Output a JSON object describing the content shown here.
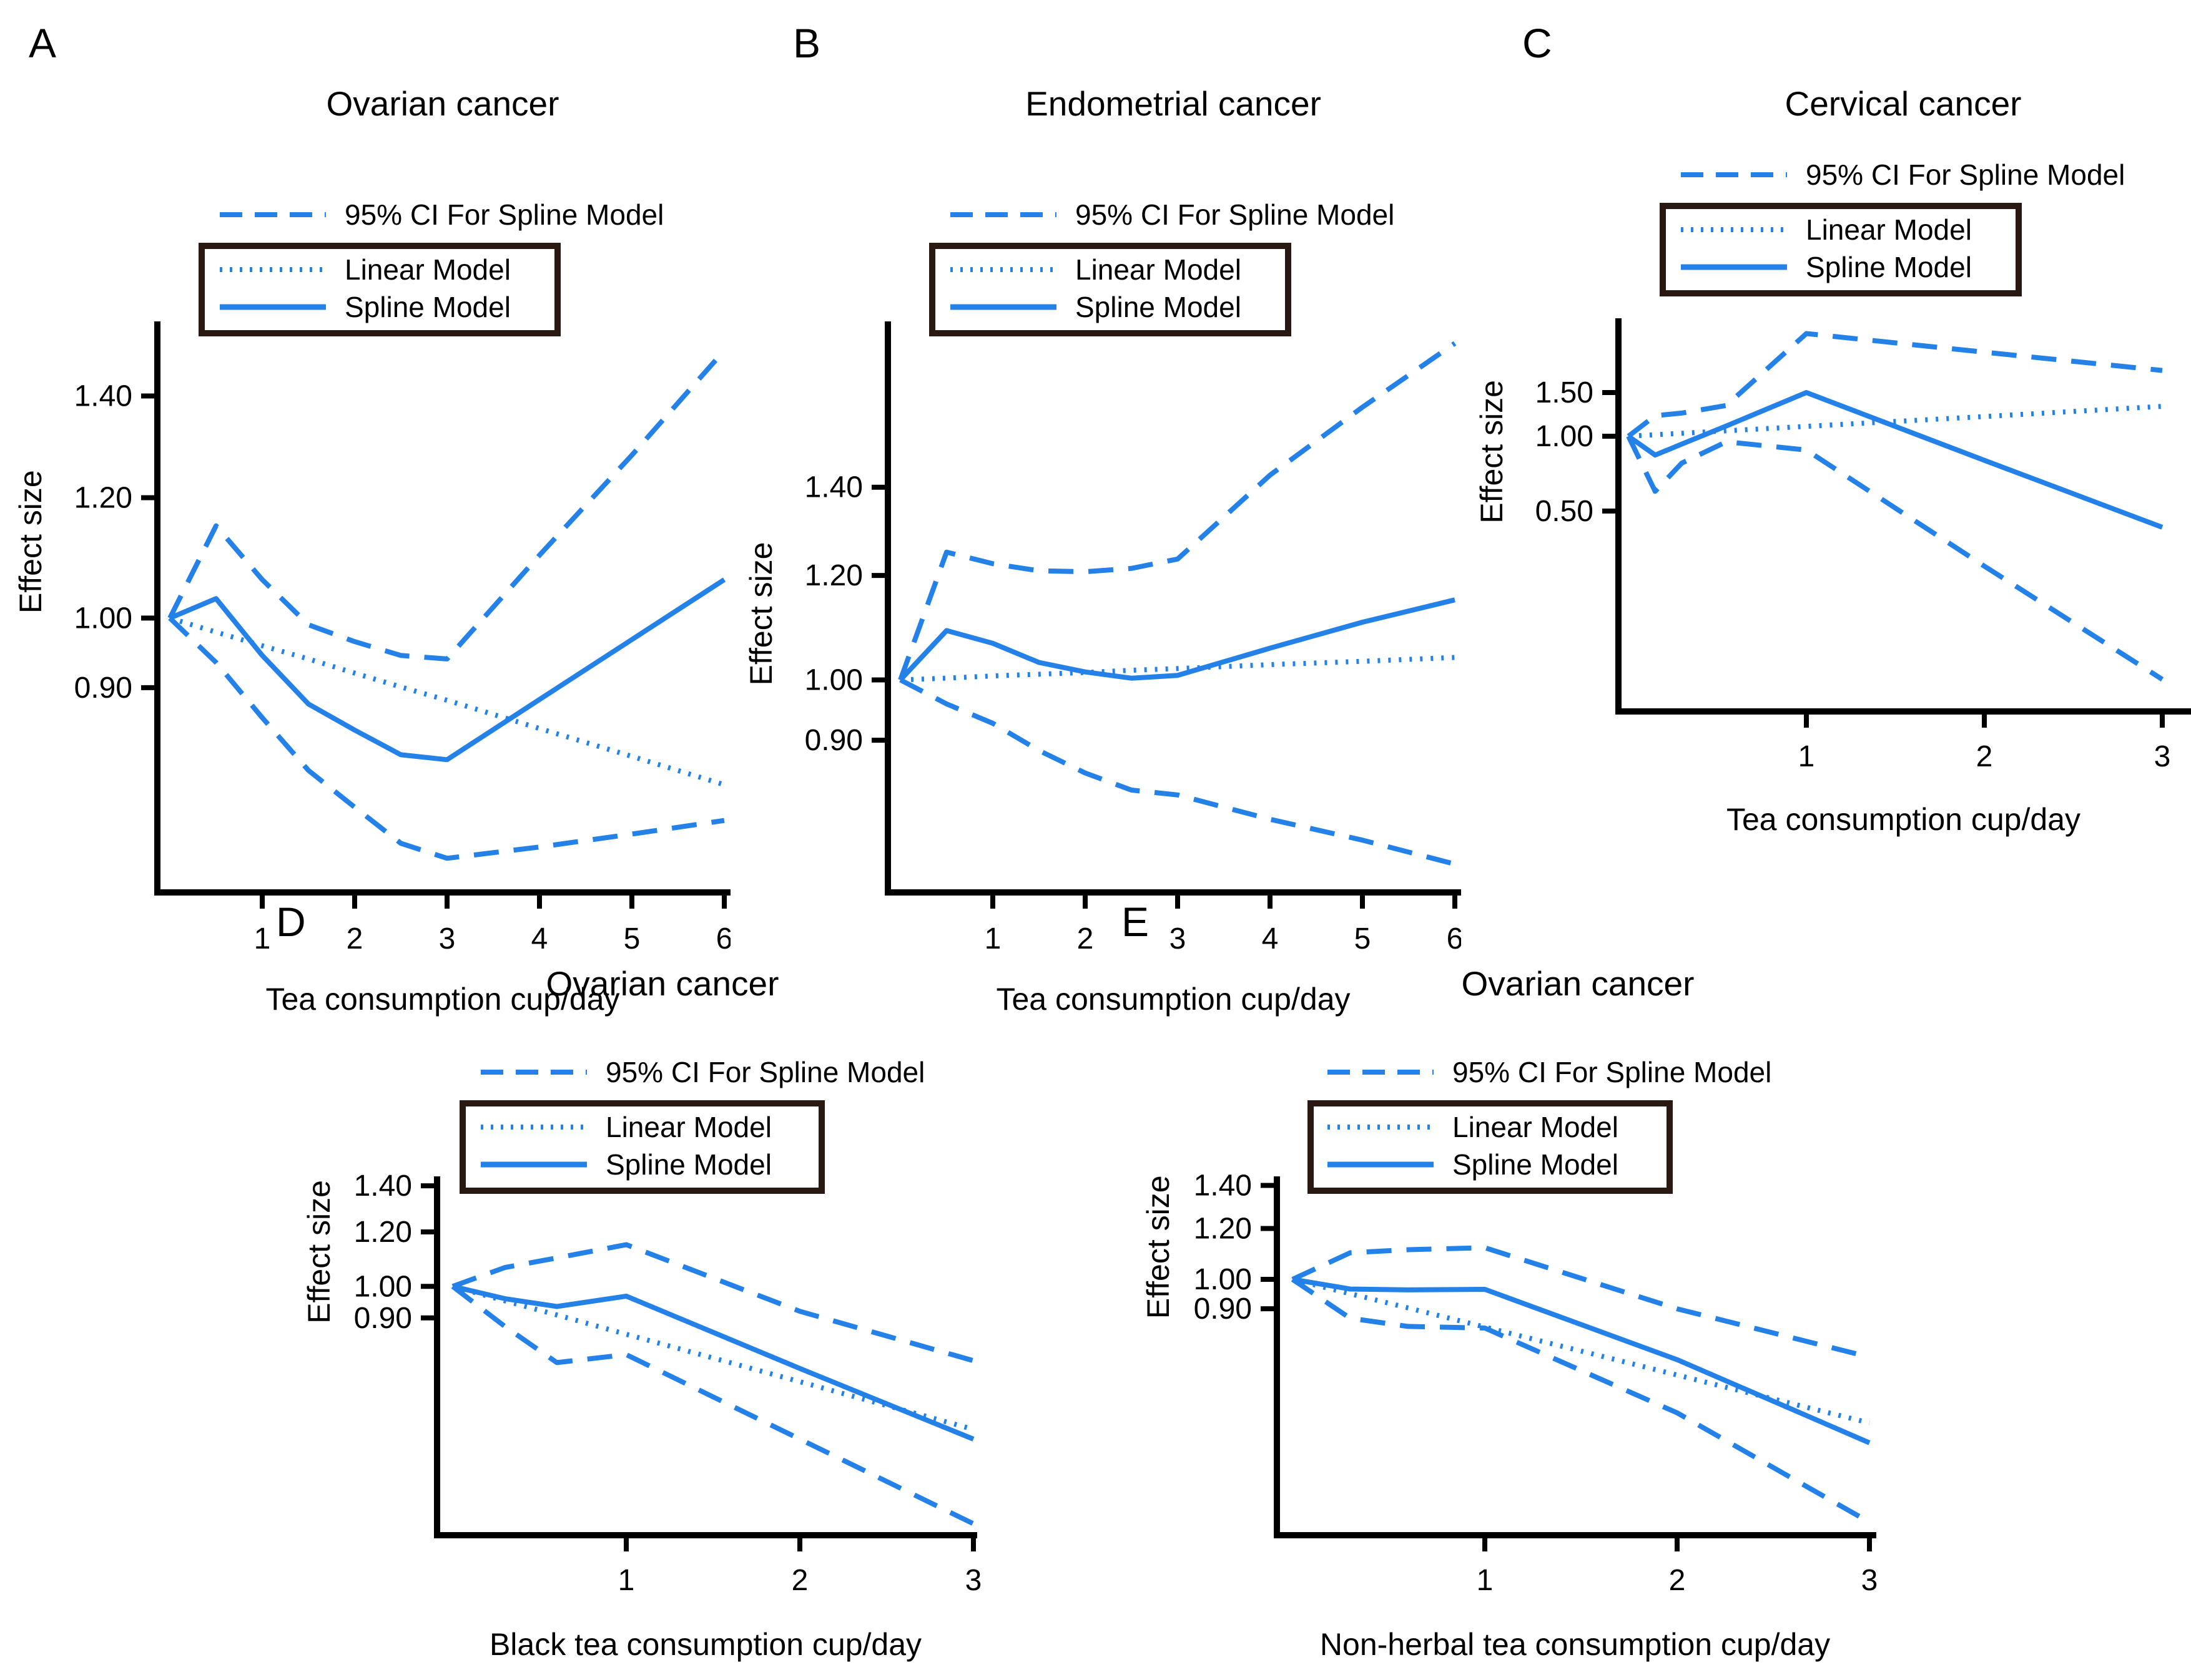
{
  "figure": {
    "ylabel": "Effect size",
    "colors": {
      "accent": "#2381E8",
      "legend_box_border": "#2A1913",
      "text": "#000000",
      "axis": "#000000"
    },
    "legend": {
      "ci_label": "95% CI For Spline Model",
      "linear_label": "Linear Model",
      "spline_label": "Spline Model"
    }
  },
  "chart_data": [
    {
      "type": "line",
      "panel_label": "A",
      "title": "Ovarian cancer",
      "xlabel": "Tea consumption cup/day",
      "ylabel": "Effect size",
      "yscale": "log",
      "grid": false,
      "legend_position": "top-inside-box",
      "x_ticks": [
        1,
        2,
        3,
        4,
        5,
        6
      ],
      "y_ticks": [
        0.9,
        1.0,
        1.2,
        1.4
      ],
      "y_tick_labels": [
        "0.90",
        "1.00",
        "1.20",
        "1.40"
      ],
      "xlim": [
        0,
        6
      ],
      "ylim": [
        0.66,
        1.56
      ],
      "legend": {
        "ci": "95% CI For Spline Model",
        "linear": "Linear Model",
        "spline": "Spline Model"
      },
      "series": [
        {
          "name": "95% CI upper",
          "style": "dashed",
          "x": [
            0,
            0.5,
            1,
            1.5,
            2,
            2.5,
            3,
            4,
            5,
            6
          ],
          "y": [
            1.0,
            1.15,
            1.06,
            0.99,
            0.965,
            0.945,
            0.94,
            1.1,
            1.28,
            1.5
          ]
        },
        {
          "name": "Spline Model",
          "style": "solid",
          "x": [
            0,
            0.5,
            1,
            1.5,
            2,
            2.5,
            3,
            4,
            5,
            6
          ],
          "y": [
            1.0,
            1.03,
            0.945,
            0.878,
            0.844,
            0.813,
            0.807,
            0.884,
            0.968,
            1.06
          ]
        },
        {
          "name": "Linear Model",
          "style": "dotted",
          "x": [
            0,
            0.5,
            1,
            1.5,
            2,
            2.5,
            3,
            4,
            5,
            6
          ],
          "y": [
            1.0,
            0.979,
            0.959,
            0.94,
            0.92,
            0.901,
            0.883,
            0.846,
            0.811,
            0.777
          ]
        },
        {
          "name": "95% CI lower",
          "style": "dashed",
          "x": [
            0,
            0.5,
            1,
            1.5,
            2,
            2.5,
            3,
            4,
            5,
            6
          ],
          "y": [
            1.0,
            0.935,
            0.86,
            0.794,
            0.751,
            0.711,
            0.695,
            0.707,
            0.721,
            0.736
          ]
        }
      ]
    },
    {
      "type": "line",
      "panel_label": "B",
      "title": "Endometrial cancer",
      "xlabel": "Tea consumption cup/day",
      "ylabel": "Effect size",
      "yscale": "log",
      "grid": false,
      "legend_position": "top-inside-box",
      "x_ticks": [
        1,
        2,
        3,
        4,
        5,
        6
      ],
      "y_ticks": [
        0.9,
        1.0,
        1.2,
        1.4
      ],
      "y_tick_labels": [
        "0.90",
        "1.00",
        "1.20",
        "1.40"
      ],
      "xlim": [
        0,
        6
      ],
      "ylim": [
        0.69,
        1.86
      ],
      "legend": {
        "ci": "95% CI For Spline Model",
        "linear": "Linear Model",
        "spline": "Spline Model"
      },
      "series": [
        {
          "name": "95% CI upper",
          "style": "dashed",
          "x": [
            0,
            0.5,
            1,
            1.5,
            2,
            2.5,
            3,
            4,
            5,
            6
          ],
          "y": [
            1.0,
            1.25,
            1.225,
            1.21,
            1.208,
            1.215,
            1.235,
            1.43,
            1.61,
            1.8
          ]
        },
        {
          "name": "Spline Model",
          "style": "solid",
          "x": [
            0,
            0.5,
            1,
            1.5,
            2,
            2.5,
            3,
            4,
            5,
            6
          ],
          "y": [
            1.0,
            1.09,
            1.066,
            1.031,
            1.014,
            1.003,
            1.008,
            1.057,
            1.106,
            1.15
          ]
        },
        {
          "name": "Linear Model",
          "style": "dotted",
          "x": [
            0,
            0.5,
            1,
            1.5,
            2,
            2.5,
            3,
            4,
            5,
            6
          ],
          "y": [
            1.0,
            1.003,
            1.007,
            1.01,
            1.013,
            1.017,
            1.02,
            1.027,
            1.033,
            1.04
          ]
        },
        {
          "name": "95% CI lower",
          "style": "dashed",
          "x": [
            0,
            0.5,
            1,
            1.5,
            2,
            2.5,
            3,
            4,
            5,
            6
          ],
          "y": [
            1.0,
            0.959,
            0.927,
            0.884,
            0.85,
            0.825,
            0.818,
            0.784,
            0.756,
            0.725
          ]
        }
      ]
    },
    {
      "type": "line",
      "panel_label": "C",
      "title": "Cervical cancer",
      "xlabel": "Tea consumption cup/day",
      "ylabel": "Effect size",
      "yscale": "log",
      "grid": false,
      "legend_position": "top-inside-box",
      "x_ticks": [
        1,
        2,
        3
      ],
      "y_ticks": [
        0.5,
        1.0,
        1.5
      ],
      "y_tick_labels": [
        "0.50",
        "1.00",
        "1.50"
      ],
      "xlim": [
        0,
        3
      ],
      "ylim": [
        0.078,
        2.9
      ],
      "legend": {
        "ci": "95% CI For Spline Model",
        "linear": "Linear Model",
        "spline": "Spline Model"
      },
      "series": [
        {
          "name": "95% CI upper",
          "style": "dashed",
          "x": [
            0,
            0.15,
            0.3,
            0.55,
            1,
            2,
            3
          ],
          "y": [
            1.0,
            1.21,
            1.24,
            1.33,
            2.59,
            2.18,
            1.84
          ]
        },
        {
          "name": "Spline Model",
          "style": "solid",
          "x": [
            0,
            0.15,
            0.3,
            0.55,
            1,
            2,
            3
          ],
          "y": [
            1.0,
            0.84,
            0.93,
            1.1,
            1.5,
            0.8,
            0.43
          ]
        },
        {
          "name": "Linear Model",
          "style": "dotted",
          "x": [
            0,
            0.15,
            0.3,
            0.55,
            1,
            2,
            3
          ],
          "y": [
            1.0,
            1.014,
            1.028,
            1.052,
            1.096,
            1.2,
            1.32
          ]
        },
        {
          "name": "95% CI lower",
          "style": "dashed",
          "x": [
            0,
            0.15,
            0.3,
            0.55,
            1,
            2,
            3
          ],
          "y": [
            1.0,
            0.6,
            0.78,
            0.95,
            0.88,
            0.3,
            0.105
          ]
        }
      ]
    },
    {
      "type": "line",
      "panel_label": "D",
      "title": "Ovarian cancer",
      "xlabel": "Black tea consumption cup/day",
      "ylabel": "Effect size",
      "yscale": "log",
      "grid": false,
      "legend_position": "top-inside-box",
      "x_ticks": [
        1,
        2,
        3
      ],
      "y_ticks": [
        0.9,
        1.0,
        1.2,
        1.4
      ],
      "y_tick_labels": [
        "0.90",
        "1.00",
        "1.20",
        "1.40"
      ],
      "xlim": [
        0,
        3
      ],
      "ylim": [
        0.435,
        1.43
      ],
      "legend": {
        "ci": "95% CI For Spline Model",
        "linear": "Linear Model",
        "spline": "Spline Model"
      },
      "series": [
        {
          "name": "95% CI upper",
          "style": "dashed",
          "x": [
            0,
            0.3,
            0.6,
            1,
            2,
            3
          ],
          "y": [
            1.0,
            1.065,
            1.1,
            1.15,
            0.92,
            0.78
          ]
        },
        {
          "name": "Spline Model",
          "style": "solid",
          "x": [
            0,
            0.3,
            0.6,
            1,
            2,
            3
          ],
          "y": [
            1.0,
            0.96,
            0.935,
            0.968,
            0.76,
            0.6
          ]
        },
        {
          "name": "Linear Model",
          "style": "dotted",
          "x": [
            0,
            0.3,
            0.6,
            1,
            2,
            3
          ],
          "y": [
            1.0,
            0.953,
            0.909,
            0.852,
            0.727,
            0.62
          ]
        },
        {
          "name": "95% CI lower",
          "style": "dashed",
          "x": [
            0,
            0.3,
            0.6,
            1,
            2,
            3
          ],
          "y": [
            1.0,
            0.875,
            0.775,
            0.796,
            0.6,
            0.452
          ]
        }
      ]
    },
    {
      "type": "line",
      "panel_label": "E",
      "title": "Ovarian cancer",
      "xlabel": "Non-herbal tea consumption cup/day",
      "ylabel": "Effect size",
      "yscale": "log",
      "grid": false,
      "legend_position": "top-inside-box",
      "x_ticks": [
        1,
        2,
        3
      ],
      "y_ticks": [
        0.9,
        1.0,
        1.2,
        1.4
      ],
      "y_tick_labels": [
        "0.90",
        "1.00",
        "1.20",
        "1.40"
      ],
      "xlim": [
        0,
        3
      ],
      "ylim": [
        0.4,
        1.43
      ],
      "legend": {
        "ci": "95% CI For Spline Model",
        "linear": "Linear Model",
        "spline": "Spline Model"
      },
      "series": [
        {
          "name": "95% CI upper",
          "style": "dashed",
          "x": [
            0,
            0.3,
            0.6,
            1,
            2,
            3
          ],
          "y": [
            1.0,
            1.1,
            1.112,
            1.12,
            0.9,
            0.757
          ]
        },
        {
          "name": "Spline Model",
          "style": "solid",
          "x": [
            0,
            0.3,
            0.6,
            1,
            2,
            3
          ],
          "y": [
            1.0,
            0.966,
            0.963,
            0.965,
            0.75,
            0.557
          ]
        },
        {
          "name": "Linear Model",
          "style": "dotted",
          "x": [
            0,
            0.3,
            0.6,
            1,
            2,
            3
          ],
          "y": [
            1.0,
            0.95,
            0.903,
            0.843,
            0.71,
            0.598
          ]
        },
        {
          "name": "95% CI lower",
          "style": "dashed",
          "x": [
            0,
            0.3,
            0.6,
            1,
            2,
            3
          ],
          "y": [
            1.0,
            0.87,
            0.845,
            0.84,
            0.62,
            0.419
          ]
        }
      ]
    }
  ]
}
